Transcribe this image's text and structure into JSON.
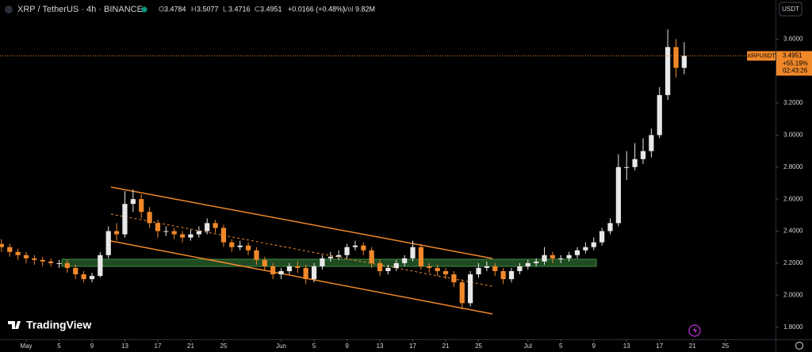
{
  "header": {
    "symbol": "XRP / TetherUS · 4h · BINANCE",
    "ohlc": [
      {
        "key": "O",
        "value": 3.4784
      },
      {
        "key": "H",
        "value": 3.5077
      },
      {
        "key": "L",
        "value": 3.4716
      },
      {
        "key": "C",
        "value": 3.4951
      }
    ],
    "change": "+0.0166 (+0.48%)",
    "volume_key": "Vol",
    "volume": "9.82M",
    "currency": "USDT"
  },
  "logo": "TradingView",
  "price_label": {
    "symbol": "XRPUSDT",
    "value": 3.4951,
    "change": "+55.19%",
    "countdown": "02:43:26"
  },
  "chart_data": {
    "type": "candlestick",
    "x": [
      -3,
      -2,
      -1,
      0,
      1,
      2,
      3,
      4,
      5,
      6,
      7,
      8,
      9,
      10,
      11,
      12,
      13,
      14,
      15,
      16,
      17,
      18,
      19,
      20,
      21,
      22,
      23,
      24,
      25,
      26,
      27,
      28,
      29,
      30,
      31,
      32,
      33,
      34,
      35,
      36,
      37,
      38,
      39,
      40,
      41,
      42,
      43,
      44,
      45,
      46,
      47,
      48,
      49,
      50,
      51,
      52,
      53,
      54,
      55,
      56,
      57,
      58,
      59,
      60,
      61,
      62,
      63,
      64,
      65,
      66,
      67,
      68,
      69,
      70,
      71,
      72,
      73,
      74,
      75,
      76,
      77,
      78,
      79,
      80
    ],
    "series": [
      {
        "name": "XRPUSDT",
        "up_color": "#e8e8e8",
        "down_color": "#f0882a",
        "open": [
          2.32,
          2.3,
          2.27,
          2.25,
          2.23,
          2.22,
          2.21,
          2.2,
          2.2,
          2.17,
          2.13,
          2.1,
          2.12,
          2.25,
          2.4,
          2.38,
          2.57,
          2.6,
          2.52,
          2.45,
          2.4,
          2.4,
          2.38,
          2.36,
          2.38,
          2.4,
          2.45,
          2.42,
          2.33,
          2.3,
          2.31,
          2.28,
          2.22,
          2.18,
          2.13,
          2.15,
          2.18,
          2.17,
          2.1,
          2.18,
          2.23,
          2.24,
          2.25,
          2.3,
          2.31,
          2.28,
          2.2,
          2.15,
          2.17,
          2.2,
          2.23,
          2.3,
          2.18,
          2.17,
          2.15,
          2.13,
          2.08,
          1.95,
          2.13,
          2.17,
          2.18,
          2.15,
          2.1,
          2.15,
          2.18,
          2.2,
          2.21,
          2.25,
          2.23,
          2.23,
          2.25,
          2.28,
          2.3,
          2.33,
          2.4,
          2.45,
          2.8,
          2.8,
          2.85,
          2.9,
          3.0,
          3.25,
          3.55,
          3.42
        ],
        "high": [
          2.35,
          2.32,
          2.29,
          2.27,
          2.25,
          2.24,
          2.23,
          2.22,
          2.22,
          2.19,
          2.15,
          2.14,
          2.27,
          2.43,
          2.45,
          2.65,
          2.66,
          2.63,
          2.55,
          2.47,
          2.43,
          2.42,
          2.4,
          2.41,
          2.43,
          2.48,
          2.47,
          2.44,
          2.35,
          2.34,
          2.33,
          2.3,
          2.24,
          2.2,
          2.17,
          2.2,
          2.21,
          2.19,
          2.2,
          2.25,
          2.27,
          2.28,
          2.32,
          2.34,
          2.33,
          2.3,
          2.22,
          2.19,
          2.22,
          2.25,
          2.34,
          2.32,
          2.2,
          2.19,
          2.17,
          2.15,
          2.1,
          2.15,
          2.2,
          2.21,
          2.2,
          2.17,
          2.17,
          2.2,
          2.22,
          2.23,
          2.3,
          2.27,
          2.25,
          2.27,
          2.3,
          2.33,
          2.36,
          2.42,
          2.48,
          2.88,
          2.9,
          2.95,
          2.98,
          3.04,
          3.3,
          3.66,
          3.6,
          3.58
        ],
        "low": [
          2.27,
          2.24,
          2.22,
          2.2,
          2.19,
          2.18,
          2.18,
          2.17,
          2.14,
          2.1,
          2.08,
          2.08,
          2.11,
          2.23,
          2.34,
          2.36,
          2.52,
          2.48,
          2.42,
          2.36,
          2.37,
          2.35,
          2.33,
          2.34,
          2.36,
          2.38,
          2.39,
          2.3,
          2.27,
          2.28,
          2.25,
          2.19,
          2.15,
          2.1,
          2.1,
          2.13,
          2.14,
          2.07,
          2.08,
          2.16,
          2.21,
          2.22,
          2.23,
          2.28,
          2.25,
          2.17,
          2.12,
          2.13,
          2.15,
          2.18,
          2.21,
          2.16,
          2.14,
          2.12,
          2.1,
          2.05,
          1.91,
          1.93,
          2.11,
          2.15,
          2.12,
          2.07,
          2.08,
          2.13,
          2.16,
          2.18,
          2.19,
          2.2,
          2.2,
          2.21,
          2.23,
          2.26,
          2.28,
          2.31,
          2.38,
          2.43,
          2.72,
          2.78,
          2.82,
          2.86,
          2.98,
          3.22,
          3.36,
          3.38
        ],
        "close": [
          2.3,
          2.27,
          2.25,
          2.23,
          2.22,
          2.21,
          2.2,
          2.2,
          2.17,
          2.13,
          2.1,
          2.12,
          2.25,
          2.4,
          2.38,
          2.57,
          2.6,
          2.52,
          2.45,
          2.4,
          2.4,
          2.38,
          2.36,
          2.38,
          2.4,
          2.45,
          2.42,
          2.33,
          2.3,
          2.31,
          2.28,
          2.22,
          2.18,
          2.13,
          2.15,
          2.18,
          2.17,
          2.1,
          2.18,
          2.23,
          2.24,
          2.25,
          2.3,
          2.31,
          2.28,
          2.2,
          2.15,
          2.17,
          2.2,
          2.23,
          2.3,
          2.18,
          2.17,
          2.15,
          2.13,
          2.08,
          1.95,
          2.13,
          2.17,
          2.18,
          2.15,
          2.1,
          2.15,
          2.18,
          2.2,
          2.21,
          2.25,
          2.23,
          2.23,
          2.25,
          2.28,
          2.3,
          2.33,
          2.4,
          2.45,
          2.8,
          2.8,
          2.85,
          2.9,
          3.0,
          3.25,
          3.55,
          3.42,
          3.4951
        ]
      }
    ],
    "xlim": [
      -3.18,
      91.1
    ],
    "xticks": [
      {
        "value": 0,
        "label": "May"
      },
      {
        "value": 4,
        "label": "5"
      },
      {
        "value": 8,
        "label": "9"
      },
      {
        "value": 12,
        "label": "13"
      },
      {
        "value": 16,
        "label": "17"
      },
      {
        "value": 20,
        "label": "21"
      },
      {
        "value": 24,
        "label": "25"
      },
      {
        "value": 31,
        "label": "Jun"
      },
      {
        "value": 35,
        "label": "5"
      },
      {
        "value": 39,
        "label": "9"
      },
      {
        "value": 43,
        "label": "13"
      },
      {
        "value": 47,
        "label": "17"
      },
      {
        "value": 51,
        "label": "21"
      },
      {
        "value": 55,
        "label": "25"
      },
      {
        "value": 61,
        "label": "Jul"
      },
      {
        "value": 65,
        "label": "5"
      },
      {
        "value": 69,
        "label": "9"
      },
      {
        "value": 73,
        "label": "13"
      },
      {
        "value": 77,
        "label": "17"
      },
      {
        "value": 81,
        "label": "21"
      },
      {
        "value": 85,
        "label": "25"
      }
    ],
    "ylim": [
      1.724,
      3.844
    ],
    "yticks": [
      {
        "value": 1.8,
        "label": "1.8000"
      },
      {
        "value": 2.0,
        "label": "2.0000"
      },
      {
        "value": 2.2,
        "label": "2.2000"
      },
      {
        "value": 2.4,
        "label": "2.4000"
      },
      {
        "value": 2.6,
        "label": "2.6000"
      },
      {
        "value": 2.8,
        "label": "2.8000"
      },
      {
        "value": 3.0,
        "label": "3.0000"
      },
      {
        "value": 3.2,
        "label": "3.2000"
      },
      {
        "value": 3.4,
        "label": "3.4000"
      },
      {
        "value": 3.6,
        "label": "3.6000"
      }
    ],
    "grid": false
  }
}
